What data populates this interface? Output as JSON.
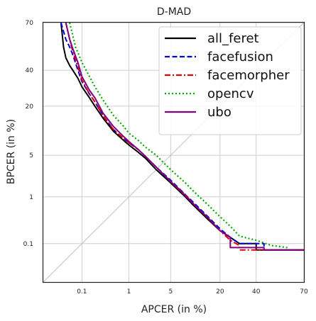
{
  "chart_data": {
    "type": "line",
    "title": "D-MAD",
    "xlabel": "APCER (in %)",
    "ylabel": "BPCER (in %)",
    "scale": "probit (normal deviate)",
    "xlim": [
      0.01,
      70
    ],
    "ylim": [
      0.01,
      70
    ],
    "grid": true,
    "legend_position": "top-right",
    "xticks": [
      {
        "value": 0.1,
        "label": "0.1"
      },
      {
        "value": 1,
        "label": "1"
      },
      {
        "value": 5,
        "label": "5"
      },
      {
        "value": 20,
        "label": "20"
      },
      {
        "value": 40,
        "label": "40"
      },
      {
        "value": 70,
        "label": "70"
      }
    ],
    "yticks": [
      {
        "value": 0.1,
        "label": "0.1"
      },
      {
        "value": 1,
        "label": "1"
      },
      {
        "value": 5,
        "label": "5"
      },
      {
        "value": 20,
        "label": "20"
      },
      {
        "value": 40,
        "label": "40"
      },
      {
        "value": 70,
        "label": "70"
      }
    ],
    "reference_line": "APCER = BPCER diagonal",
    "series": [
      {
        "name": "all_feret",
        "color": "#000000",
        "style": "solid",
        "points": [
          [
            0.03,
            70
          ],
          [
            0.035,
            55
          ],
          [
            0.04,
            48
          ],
          [
            0.05,
            43
          ],
          [
            0.06,
            40
          ],
          [
            0.08,
            35
          ],
          [
            0.1,
            30
          ],
          [
            0.15,
            24
          ],
          [
            0.2,
            20
          ],
          [
            0.3,
            15
          ],
          [
            0.5,
            10.5
          ],
          [
            0.8,
            8
          ],
          [
            1,
            7
          ],
          [
            1.5,
            5.5
          ],
          [
            2,
            4.5
          ],
          [
            3,
            3
          ],
          [
            5,
            1.8
          ],
          [
            8,
            1
          ],
          [
            10,
            0.7
          ],
          [
            15,
            0.35
          ],
          [
            20,
            0.2
          ],
          [
            25,
            0.14
          ],
          [
            30,
            0.1
          ],
          [
            40,
            0.1
          ],
          [
            40,
            0.07
          ],
          [
            70,
            0.07
          ]
        ]
      },
      {
        "name": "facefusion",
        "color": "#0000dd",
        "style": "dashed",
        "points": [
          [
            0.03,
            70
          ],
          [
            0.04,
            60
          ],
          [
            0.05,
            55
          ],
          [
            0.06,
            50
          ],
          [
            0.08,
            40
          ],
          [
            0.1,
            33
          ],
          [
            0.15,
            26
          ],
          [
            0.2,
            22
          ],
          [
            0.3,
            16
          ],
          [
            0.5,
            11
          ],
          [
            0.8,
            8.5
          ],
          [
            1,
            7.5
          ],
          [
            1.5,
            6
          ],
          [
            2,
            4.8
          ],
          [
            3,
            3.3
          ],
          [
            5,
            2
          ],
          [
            8,
            1.1
          ],
          [
            10,
            0.8
          ],
          [
            15,
            0.4
          ],
          [
            20,
            0.22
          ],
          [
            25,
            0.14
          ],
          [
            30,
            0.1
          ],
          [
            45,
            0.1
          ],
          [
            45,
            0.07
          ],
          [
            70,
            0.07
          ]
        ]
      },
      {
        "name": "facemorpher",
        "color": "#dd0000",
        "style": "dashdot",
        "points": [
          [
            0.04,
            70
          ],
          [
            0.05,
            60
          ],
          [
            0.06,
            52
          ],
          [
            0.08,
            42
          ],
          [
            0.1,
            34
          ],
          [
            0.15,
            26
          ],
          [
            0.2,
            22
          ],
          [
            0.3,
            16
          ],
          [
            0.5,
            11
          ],
          [
            0.8,
            8.5
          ],
          [
            1,
            7.5
          ],
          [
            1.5,
            6
          ],
          [
            2,
            4.8
          ],
          [
            3,
            3.3
          ],
          [
            5,
            1.9
          ],
          [
            8,
            1.1
          ],
          [
            10,
            0.75
          ],
          [
            15,
            0.38
          ],
          [
            20,
            0.2
          ],
          [
            25,
            0.12
          ],
          [
            30,
            0.09
          ],
          [
            30,
            0.07
          ],
          [
            70,
            0.07
          ]
        ]
      },
      {
        "name": "opencv",
        "color": "#00aa00",
        "style": "dotted",
        "points": [
          [
            0.05,
            70
          ],
          [
            0.07,
            55
          ],
          [
            0.1,
            45
          ],
          [
            0.15,
            36
          ],
          [
            0.2,
            30
          ],
          [
            0.3,
            23
          ],
          [
            0.5,
            16
          ],
          [
            0.8,
            12
          ],
          [
            1,
            10
          ],
          [
            1.5,
            8
          ],
          [
            2,
            6.5
          ],
          [
            3,
            5
          ],
          [
            5,
            3
          ],
          [
            8,
            1.8
          ],
          [
            10,
            1.3
          ],
          [
            15,
            0.7
          ],
          [
            20,
            0.4
          ],
          [
            25,
            0.25
          ],
          [
            30,
            0.15
          ],
          [
            40,
            0.12
          ],
          [
            50,
            0.09
          ],
          [
            60,
            0.08
          ]
        ]
      },
      {
        "name": "ubo",
        "color": "#800080",
        "style": "solid",
        "points": [
          [
            0.04,
            70
          ],
          [
            0.05,
            60
          ],
          [
            0.06,
            54
          ],
          [
            0.08,
            45
          ],
          [
            0.1,
            36
          ],
          [
            0.15,
            28
          ],
          [
            0.2,
            24
          ],
          [
            0.3,
            17
          ],
          [
            0.5,
            12
          ],
          [
            0.8,
            9
          ],
          [
            1,
            7.8
          ],
          [
            1.5,
            6
          ],
          [
            2,
            4.8
          ],
          [
            3,
            3.3
          ],
          [
            5,
            1.9
          ],
          [
            8,
            1.05
          ],
          [
            10,
            0.75
          ],
          [
            15,
            0.38
          ],
          [
            20,
            0.2
          ],
          [
            25,
            0.14
          ],
          [
            25,
            0.08
          ],
          [
            45,
            0.08
          ],
          [
            45,
            0.07
          ],
          [
            70,
            0.07
          ]
        ]
      }
    ]
  }
}
